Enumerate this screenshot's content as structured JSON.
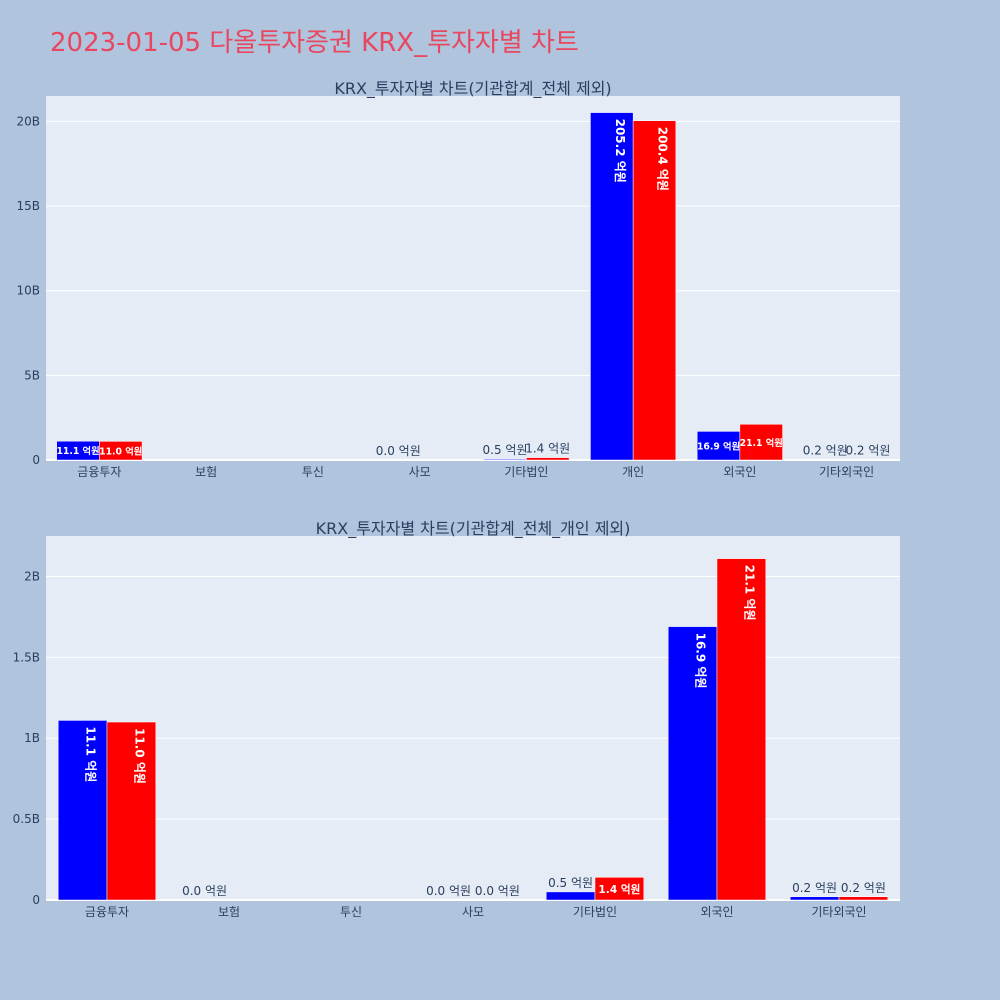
{
  "page": {
    "title": "2023-01-05 다올투자증권 KRX_투자자별 차트"
  },
  "colors": {
    "page_bg": "#b0c4de",
    "plot_bg": "#e5ecf6",
    "title": "#e8475f",
    "series_a": "#0000ff",
    "series_b": "#ff0000"
  },
  "chart_data": [
    {
      "type": "bar",
      "title": "KRX_투자자별 차트(기관합계_전체 제외)",
      "categories": [
        "금융투자",
        "보험",
        "투신",
        "사모",
        "기타법인",
        "개인",
        "외국인",
        "기타외국인"
      ],
      "series": [
        {
          "color": "#0000ff",
          "values": [
            1110000000.0,
            0,
            0,
            0,
            50000000.0,
            20520000000.0,
            1690000000.0,
            20000000.0
          ],
          "labels": [
            "11.1 억원",
            "",
            "",
            "0.0 억원",
            "0.5 억원",
            "205.2 억원",
            "16.9 억원",
            "0.2 억원"
          ]
        },
        {
          "color": "#ff0000",
          "values": [
            1100000000.0,
            0,
            0,
            0,
            140000000.0,
            20040000000.0,
            2110000000.0,
            20000000.0
          ],
          "labels": [
            "11.0 억원",
            "",
            "",
            "",
            "1.4 억원",
            "200.4 억원",
            "21.1 억원",
            "0.2 억원"
          ]
        }
      ],
      "ylim": [
        0,
        21500000000.0
      ],
      "yticks": [
        {
          "v": 0,
          "t": "0"
        },
        {
          "v": 5000000000.0,
          "t": "5B"
        },
        {
          "v": 10000000000.0,
          "t": "10B"
        },
        {
          "v": 15000000000.0,
          "t": "15B"
        },
        {
          "v": 20000000000.0,
          "t": "20B"
        }
      ],
      "grid": true
    },
    {
      "type": "bar",
      "title": "KRX_투자자별 차트(기관합계_전체_개인 제외)",
      "categories": [
        "금융투자",
        "보험",
        "투신",
        "사모",
        "기타법인",
        "외국인",
        "기타외국인"
      ],
      "series": [
        {
          "color": "#0000ff",
          "values": [
            1110000000.0,
            0,
            0,
            0,
            50000000.0,
            1690000000.0,
            20000000.0
          ],
          "labels": [
            "11.1 억원",
            "0.0 억원",
            "",
            "0.0 억원",
            "0.5 억원",
            "16.9 억원",
            "0.2 억원"
          ]
        },
        {
          "color": "#ff0000",
          "values": [
            1100000000.0,
            0,
            0,
            0,
            140000000.0,
            2110000000.0,
            20000000.0
          ],
          "labels": [
            "11.0 억원",
            "",
            "",
            "0.0 억원",
            "1.4 억원",
            "21.1 억원",
            "0.2 억원"
          ]
        }
      ],
      "ylim": [
        0,
        2250000000.0
      ],
      "yticks": [
        {
          "v": 0,
          "t": "0"
        },
        {
          "v": 500000000.0,
          "t": "0.5B"
        },
        {
          "v": 1000000000.0,
          "t": "1B"
        },
        {
          "v": 1500000000.0,
          "t": "1.5B"
        },
        {
          "v": 2000000000.0,
          "t": "2B"
        }
      ],
      "grid": true
    }
  ]
}
